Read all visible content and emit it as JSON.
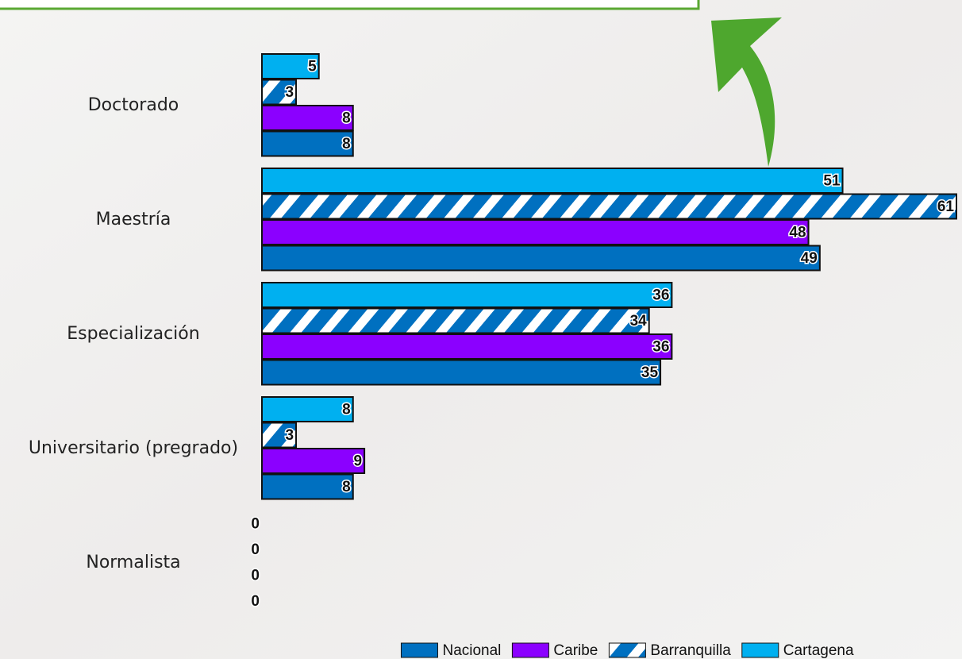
{
  "chart_data": {
    "type": "barh",
    "categories": [
      "Doctorado",
      "Maestría",
      "Especialización",
      "Universitario (pregrado)",
      "Normalista"
    ],
    "series": [
      {
        "name": "Nacional",
        "color": "#0070C0",
        "values": [
          8,
          49,
          35,
          8,
          0
        ]
      },
      {
        "name": "Caribe",
        "color": "#8B00FF",
        "values": [
          8,
          48,
          36,
          9,
          0
        ]
      },
      {
        "name": "Barranquilla",
        "color": "#0070C0",
        "hatch": true,
        "values": [
          3,
          61,
          34,
          3,
          0
        ]
      },
      {
        "name": "Cartagena",
        "color": "#00B0F0",
        "values": [
          5,
          51,
          36,
          8,
          0
        ]
      }
    ],
    "xlim": [
      0,
      61
    ],
    "legend": "bottom"
  }
}
